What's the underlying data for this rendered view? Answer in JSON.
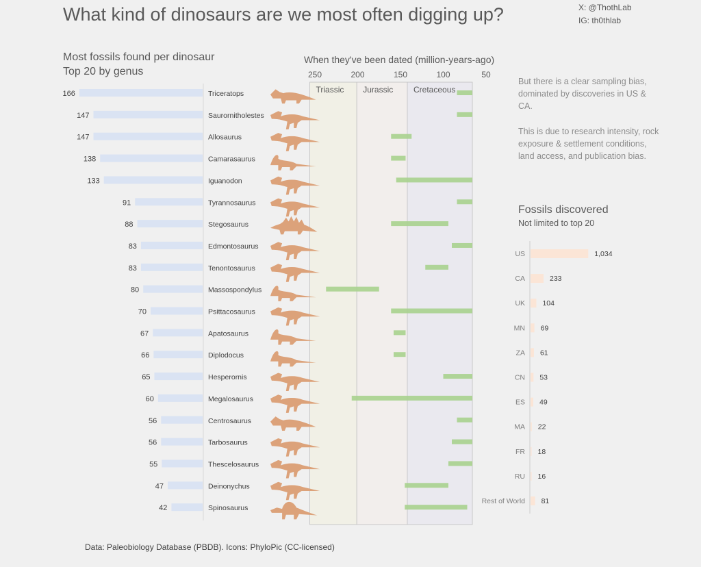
{
  "title": "What kind of dinosaurs are we most often digging up?",
  "social": {
    "x": "X: @ThothLab",
    "ig": "IG: th0thlab"
  },
  "source": "Data: Paleobiology Database (PBDB). Icons: PhyloPic (CC-licensed)",
  "notes": [
    "But there is a clear sampling bias, dominated by discoveries in US & CA.",
    "This is due to research intensity, rock exposure & settlement conditions, land access, and publication bias."
  ],
  "colors": {
    "fossil_bar": "#dae3f3",
    "range_bar": "#a9d18e",
    "silhouette": "#dca27a",
    "country_bar": "#fbe5d6",
    "triassic": "#f1f0e6",
    "jurassic": "#f2eeec",
    "cretaceous": "#eae9ef"
  },
  "chart_data": [
    {
      "type": "bar",
      "orientation": "horizontal",
      "title": "Most fossils found per dinosaur",
      "subtitle": "Top 20 by genus",
      "categories": [
        "Triceratops",
        "Saurornitholestes",
        "Allosaurus",
        "Camarasaurus",
        "Iguanodon",
        "Tyrannosaurus",
        "Stegosaurus",
        "Edmontosaurus",
        "Tenontosaurus",
        "Massospondylus",
        "Psittacosaurus",
        "Apatosaurus",
        "Diplodocus",
        "Hesperornis",
        "Megalosaurus",
        "Centrosaurus",
        "Tarbosaurus",
        "Thescelosaurus",
        "Deinonychus",
        "Spinosaurus"
      ],
      "values": [
        166,
        147,
        147,
        138,
        133,
        91,
        88,
        83,
        83,
        80,
        70,
        67,
        66,
        65,
        60,
        56,
        56,
        55,
        47,
        42
      ],
      "icons": [
        "triceratops-silhouette",
        "saurornitholestes-silhouette",
        "allosaurus-silhouette",
        "camarasaurus-silhouette",
        "iguanodon-silhouette",
        "tyrannosaurus-silhouette",
        "stegosaurus-silhouette",
        "edmontosaurus-silhouette",
        "tenontosaurus-silhouette",
        "massospondylus-silhouette",
        "psittacosaurus-silhouette",
        "apatosaurus-silhouette",
        "diplodocus-silhouette",
        "hesperornis-silhouette",
        "megalosaurus-silhouette",
        "centrosaurus-silhouette",
        "tarbosaurus-silhouette",
        "thescelosaurus-silhouette",
        "deinonychus-silhouette",
        "spinosaurus-silhouette"
      ]
    },
    {
      "type": "range",
      "title": "When they've been dated (million-years-ago)",
      "x_ticks": [
        250,
        200,
        150,
        100,
        50
      ],
      "x_reversed": true,
      "periods": [
        {
          "name": "Triassic",
          "start": 256,
          "end": 201
        },
        {
          "name": "Jurassic",
          "start": 201,
          "end": 142
        },
        {
          "name": "Cretaceous",
          "start": 142,
          "end": 66
        }
      ],
      "ranges": [
        [
          84,
          66
        ],
        [
          84,
          66
        ],
        [
          161,
          137
        ],
        [
          161,
          144
        ],
        [
          155,
          66
        ],
        [
          84,
          66
        ],
        [
          161,
          94
        ],
        [
          90,
          66
        ],
        [
          121,
          94
        ],
        [
          237,
          175
        ],
        [
          161,
          66
        ],
        [
          158,
          144
        ],
        [
          158,
          144
        ],
        [
          100,
          66
        ],
        [
          207,
          66
        ],
        [
          84,
          66
        ],
        [
          90,
          66
        ],
        [
          94,
          66
        ],
        [
          145,
          94
        ],
        [
          145,
          72
        ]
      ]
    },
    {
      "type": "bar",
      "orientation": "horizontal",
      "title": "Fossils discovered",
      "subtitle": "Not limited to top 20",
      "categories": [
        "US",
        "CA",
        "UK",
        "MN",
        "ZA",
        "CN",
        "ES",
        "MA",
        "FR",
        "RU",
        "Rest of World"
      ],
      "values": [
        1034,
        233,
        104,
        69,
        61,
        53,
        49,
        22,
        18,
        16,
        81
      ],
      "value_labels": [
        "1,034",
        "233",
        "104",
        "69",
        "61",
        "53",
        "49",
        "22",
        "18",
        "16",
        "81"
      ]
    }
  ]
}
